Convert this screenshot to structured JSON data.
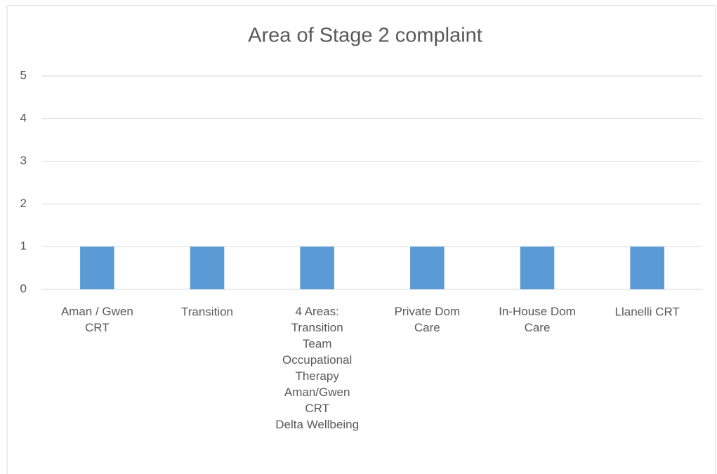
{
  "chart_data": {
    "type": "bar",
    "title": "Area of Stage 2 complaint",
    "categories": [
      "Aman / Gwen\nCRT",
      "Transition",
      "4 Areas:\nTransition\nTeam\nOccupational\nTherapy\nAman/Gwen\nCRT\nDelta Wellbeing",
      "Private Dom\nCare",
      "In-House Dom\nCare",
      "Llanelli CRT"
    ],
    "values": [
      1,
      1,
      1,
      1,
      1,
      1
    ],
    "color": "#5b9bd5",
    "ylim": [
      0,
      5
    ],
    "yticks": [
      0,
      1,
      2,
      3,
      4,
      5
    ],
    "grid": true
  }
}
